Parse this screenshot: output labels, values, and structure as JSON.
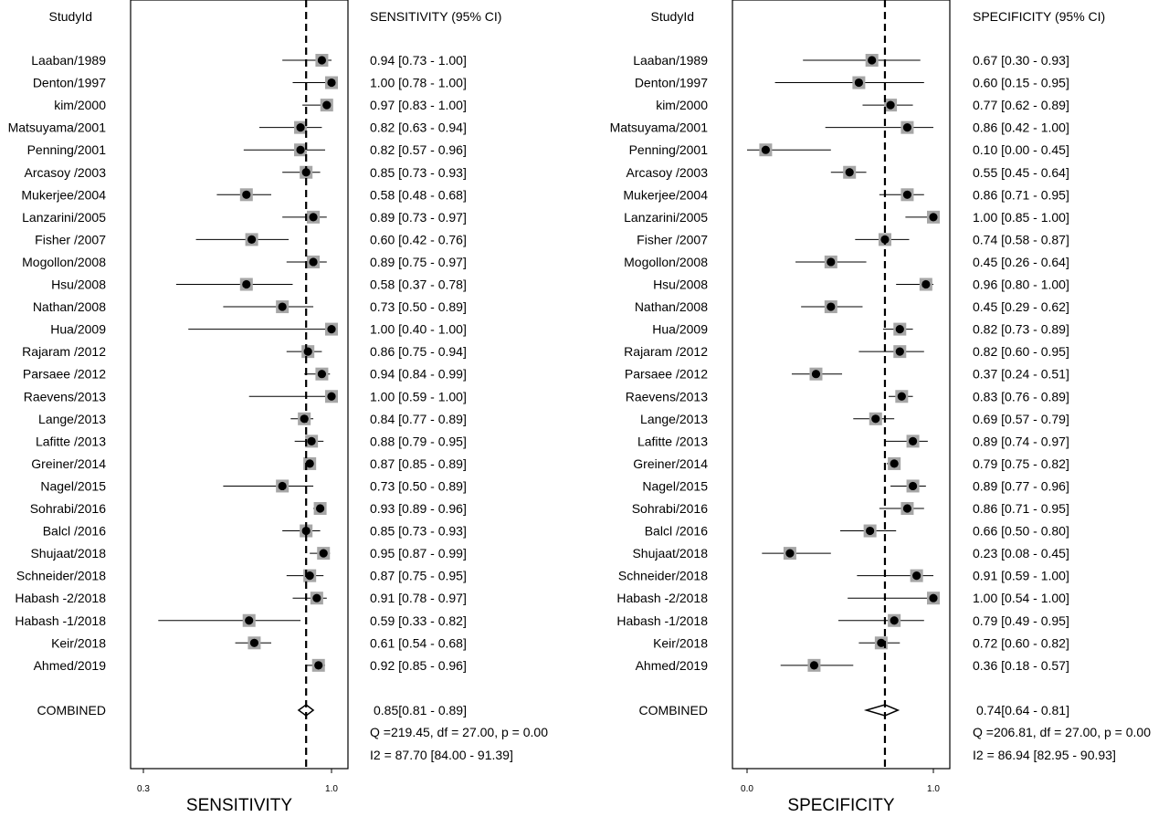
{
  "chart_data": [
    {
      "type": "forest",
      "panel": "sensitivity",
      "col_study_header": "StudyId",
      "col_ci_header": "SENSITIVITY (95% CI)",
      "xlabel": "SENSITIVITY",
      "xticks": [
        {
          "v": 0.3,
          "label": "0.3"
        },
        {
          "v": 1.0,
          "label": "1.0"
        }
      ],
      "xlim": [
        0.27,
        1.05
      ],
      "scale": "log",
      "pooled_value": 0.85,
      "studies": [
        {
          "name": "Laaban/1989",
          "est": 0.94,
          "lo": 0.73,
          "hi": 1.0,
          "ci": "0.94 [0.73 - 1.00]"
        },
        {
          "name": "Denton/1997",
          "est": 1.0,
          "lo": 0.78,
          "hi": 1.0,
          "ci": "1.00 [0.78 - 1.00]"
        },
        {
          "name": "kim/2000",
          "est": 0.97,
          "lo": 0.83,
          "hi": 1.0,
          "ci": "0.97 [0.83 - 1.00]"
        },
        {
          "name": "Matsuyama/2001",
          "est": 0.82,
          "lo": 0.63,
          "hi": 0.94,
          "ci": "0.82 [0.63 - 0.94]"
        },
        {
          "name": "Penning/2001",
          "est": 0.82,
          "lo": 0.57,
          "hi": 0.96,
          "ci": "0.82 [0.57 - 0.96]"
        },
        {
          "name": "Arcasoy /2003",
          "est": 0.85,
          "lo": 0.73,
          "hi": 0.93,
          "ci": "0.85 [0.73 - 0.93]"
        },
        {
          "name": "Mukerjee/2004",
          "est": 0.58,
          "lo": 0.48,
          "hi": 0.68,
          "ci": "0.58 [0.48 - 0.68]"
        },
        {
          "name": "Lanzarini/2005",
          "est": 0.89,
          "lo": 0.73,
          "hi": 0.97,
          "ci": "0.89 [0.73 - 0.97]"
        },
        {
          "name": "Fisher /2007",
          "est": 0.6,
          "lo": 0.42,
          "hi": 0.76,
          "ci": "0.60 [0.42 - 0.76]"
        },
        {
          "name": "Mogollon/2008",
          "est": 0.89,
          "lo": 0.75,
          "hi": 0.97,
          "ci": "0.89 [0.75 - 0.97]"
        },
        {
          "name": "Hsu/2008",
          "est": 0.58,
          "lo": 0.37,
          "hi": 0.78,
          "ci": "0.58 [0.37 - 0.78]"
        },
        {
          "name": "Nathan/2008",
          "est": 0.73,
          "lo": 0.5,
          "hi": 0.89,
          "ci": "0.73 [0.50 - 0.89]"
        },
        {
          "name": "Hua/2009",
          "est": 1.0,
          "lo": 0.4,
          "hi": 1.0,
          "ci": "1.00 [0.40 - 1.00]"
        },
        {
          "name": "Rajaram /2012",
          "est": 0.86,
          "lo": 0.75,
          "hi": 0.94,
          "ci": "0.86 [0.75 - 0.94]"
        },
        {
          "name": "Parsaee /2012",
          "est": 0.94,
          "lo": 0.84,
          "hi": 0.99,
          "ci": "0.94 [0.84 - 0.99]"
        },
        {
          "name": "Raevens/2013",
          "est": 1.0,
          "lo": 0.59,
          "hi": 1.0,
          "ci": "1.00 [0.59 - 1.00]"
        },
        {
          "name": "Lange/2013",
          "est": 0.84,
          "lo": 0.77,
          "hi": 0.89,
          "ci": "0.84 [0.77 - 0.89]"
        },
        {
          "name": "Lafitte /2013",
          "est": 0.88,
          "lo": 0.79,
          "hi": 0.95,
          "ci": "0.88 [0.79 - 0.95]"
        },
        {
          "name": "Greiner/2014",
          "est": 0.87,
          "lo": 0.85,
          "hi": 0.89,
          "ci": "0.87 [0.85 - 0.89]"
        },
        {
          "name": "Nagel/2015",
          "est": 0.73,
          "lo": 0.5,
          "hi": 0.89,
          "ci": "0.73 [0.50 - 0.89]"
        },
        {
          "name": "Sohrabi/2016",
          "est": 0.93,
          "lo": 0.89,
          "hi": 0.96,
          "ci": "0.93 [0.89 - 0.96]"
        },
        {
          "name": "Balcl  /2016",
          "est": 0.85,
          "lo": 0.73,
          "hi": 0.93,
          "ci": "0.85 [0.73 - 0.93]"
        },
        {
          "name": "Shujaat/2018",
          "est": 0.95,
          "lo": 0.87,
          "hi": 0.99,
          "ci": "0.95 [0.87 - 0.99]"
        },
        {
          "name": "Schneider/2018",
          "est": 0.87,
          "lo": 0.75,
          "hi": 0.95,
          "ci": "0.87 [0.75 - 0.95]"
        },
        {
          "name": "Habash -2/2018",
          "est": 0.91,
          "lo": 0.78,
          "hi": 0.97,
          "ci": "0.91 [0.78 - 0.97]"
        },
        {
          "name": "Habash -1/2018",
          "est": 0.59,
          "lo": 0.33,
          "hi": 0.82,
          "ci": "0.59 [0.33 - 0.82]"
        },
        {
          "name": "Keir/2018",
          "est": 0.61,
          "lo": 0.54,
          "hi": 0.68,
          "ci": "0.61 [0.54 - 0.68]"
        },
        {
          "name": "Ahmed/2019",
          "est": 0.92,
          "lo": 0.85,
          "hi": 0.96,
          "ci": "0.92 [0.85 - 0.96]"
        }
      ],
      "combined": {
        "name": "COMBINED",
        "est": 0.85,
        "lo": 0.81,
        "hi": 0.89,
        "ci": "0.85[0.81 - 0.89]"
      },
      "heterogeneity": [
        "Q =219.45, df = 27.00, p =  0.00",
        "I2 = 87.70 [84.00 - 91.39]"
      ]
    },
    {
      "type": "forest",
      "panel": "specificity",
      "col_study_header": "StudyId",
      "col_ci_header": "SPECIFICITY (95% CI)",
      "xlabel": "SPECIFICITY",
      "xticks": [
        {
          "v": 0.0,
          "label": "0.0"
        },
        {
          "v": 1.0,
          "label": "1.0"
        }
      ],
      "xlim": [
        -0.04,
        1.04
      ],
      "scale": "linear",
      "pooled_value": 0.74,
      "studies": [
        {
          "name": "Laaban/1989",
          "est": 0.67,
          "lo": 0.3,
          "hi": 0.93,
          "ci": "0.67 [0.30 - 0.93]"
        },
        {
          "name": "Denton/1997",
          "est": 0.6,
          "lo": 0.15,
          "hi": 0.95,
          "ci": "0.60 [0.15 - 0.95]"
        },
        {
          "name": "kim/2000",
          "est": 0.77,
          "lo": 0.62,
          "hi": 0.89,
          "ci": "0.77 [0.62 - 0.89]"
        },
        {
          "name": "Matsuyama/2001",
          "est": 0.86,
          "lo": 0.42,
          "hi": 1.0,
          "ci": "0.86 [0.42 - 1.00]"
        },
        {
          "name": "Penning/2001",
          "est": 0.1,
          "lo": 0.0,
          "hi": 0.45,
          "ci": "0.10 [0.00 - 0.45]"
        },
        {
          "name": "Arcasoy /2003",
          "est": 0.55,
          "lo": 0.45,
          "hi": 0.64,
          "ci": "0.55 [0.45 - 0.64]"
        },
        {
          "name": "Mukerjee/2004",
          "est": 0.86,
          "lo": 0.71,
          "hi": 0.95,
          "ci": "0.86 [0.71 - 0.95]"
        },
        {
          "name": "Lanzarini/2005",
          "est": 1.0,
          "lo": 0.85,
          "hi": 1.0,
          "ci": "1.00 [0.85 - 1.00]"
        },
        {
          "name": "Fisher /2007",
          "est": 0.74,
          "lo": 0.58,
          "hi": 0.87,
          "ci": "0.74 [0.58 - 0.87]"
        },
        {
          "name": "Mogollon/2008",
          "est": 0.45,
          "lo": 0.26,
          "hi": 0.64,
          "ci": "0.45 [0.26 - 0.64]"
        },
        {
          "name": "Hsu/2008",
          "est": 0.96,
          "lo": 0.8,
          "hi": 1.0,
          "ci": "0.96 [0.80 - 1.00]"
        },
        {
          "name": "Nathan/2008",
          "est": 0.45,
          "lo": 0.29,
          "hi": 0.62,
          "ci": "0.45 [0.29 - 0.62]"
        },
        {
          "name": "Hua/2009",
          "est": 0.82,
          "lo": 0.73,
          "hi": 0.89,
          "ci": "0.82 [0.73 - 0.89]"
        },
        {
          "name": "Rajaram /2012",
          "est": 0.82,
          "lo": 0.6,
          "hi": 0.95,
          "ci": "0.82 [0.60 - 0.95]"
        },
        {
          "name": "Parsaee /2012",
          "est": 0.37,
          "lo": 0.24,
          "hi": 0.51,
          "ci": "0.37 [0.24 - 0.51]"
        },
        {
          "name": "Raevens/2013",
          "est": 0.83,
          "lo": 0.76,
          "hi": 0.89,
          "ci": "0.83 [0.76 - 0.89]"
        },
        {
          "name": "Lange/2013",
          "est": 0.69,
          "lo": 0.57,
          "hi": 0.79,
          "ci": "0.69 [0.57 - 0.79]"
        },
        {
          "name": "Lafitte /2013",
          "est": 0.89,
          "lo": 0.74,
          "hi": 0.97,
          "ci": "0.89 [0.74 - 0.97]"
        },
        {
          "name": "Greiner/2014",
          "est": 0.79,
          "lo": 0.75,
          "hi": 0.82,
          "ci": "0.79 [0.75 - 0.82]"
        },
        {
          "name": "Nagel/2015",
          "est": 0.89,
          "lo": 0.77,
          "hi": 0.96,
          "ci": "0.89 [0.77 - 0.96]"
        },
        {
          "name": "Sohrabi/2016",
          "est": 0.86,
          "lo": 0.71,
          "hi": 0.95,
          "ci": "0.86 [0.71 - 0.95]"
        },
        {
          "name": "Balcl  /2016",
          "est": 0.66,
          "lo": 0.5,
          "hi": 0.8,
          "ci": "0.66 [0.50 - 0.80]"
        },
        {
          "name": "Shujaat/2018",
          "est": 0.23,
          "lo": 0.08,
          "hi": 0.45,
          "ci": "0.23 [0.08 - 0.45]"
        },
        {
          "name": "Schneider/2018",
          "est": 0.91,
          "lo": 0.59,
          "hi": 1.0,
          "ci": "0.91 [0.59 - 1.00]"
        },
        {
          "name": "Habash -2/2018",
          "est": 1.0,
          "lo": 0.54,
          "hi": 1.0,
          "ci": "1.00 [0.54 - 1.00]"
        },
        {
          "name": "Habash -1/2018",
          "est": 0.79,
          "lo": 0.49,
          "hi": 0.95,
          "ci": "0.79 [0.49 - 0.95]"
        },
        {
          "name": "Keir/2018",
          "est": 0.72,
          "lo": 0.6,
          "hi": 0.82,
          "ci": "0.72 [0.60 - 0.82]"
        },
        {
          "name": "Ahmed/2019",
          "est": 0.36,
          "lo": 0.18,
          "hi": 0.57,
          "ci": "0.36 [0.18 - 0.57]"
        }
      ],
      "combined": {
        "name": "COMBINED",
        "est": 0.74,
        "lo": 0.64,
        "hi": 0.81,
        "ci": "0.74[0.64 - 0.81]"
      },
      "heterogeneity": [
        "Q =206.81, df = 27.00, p =  0.00",
        "I2 = 86.94 [82.95 - 90.93]"
      ]
    }
  ]
}
